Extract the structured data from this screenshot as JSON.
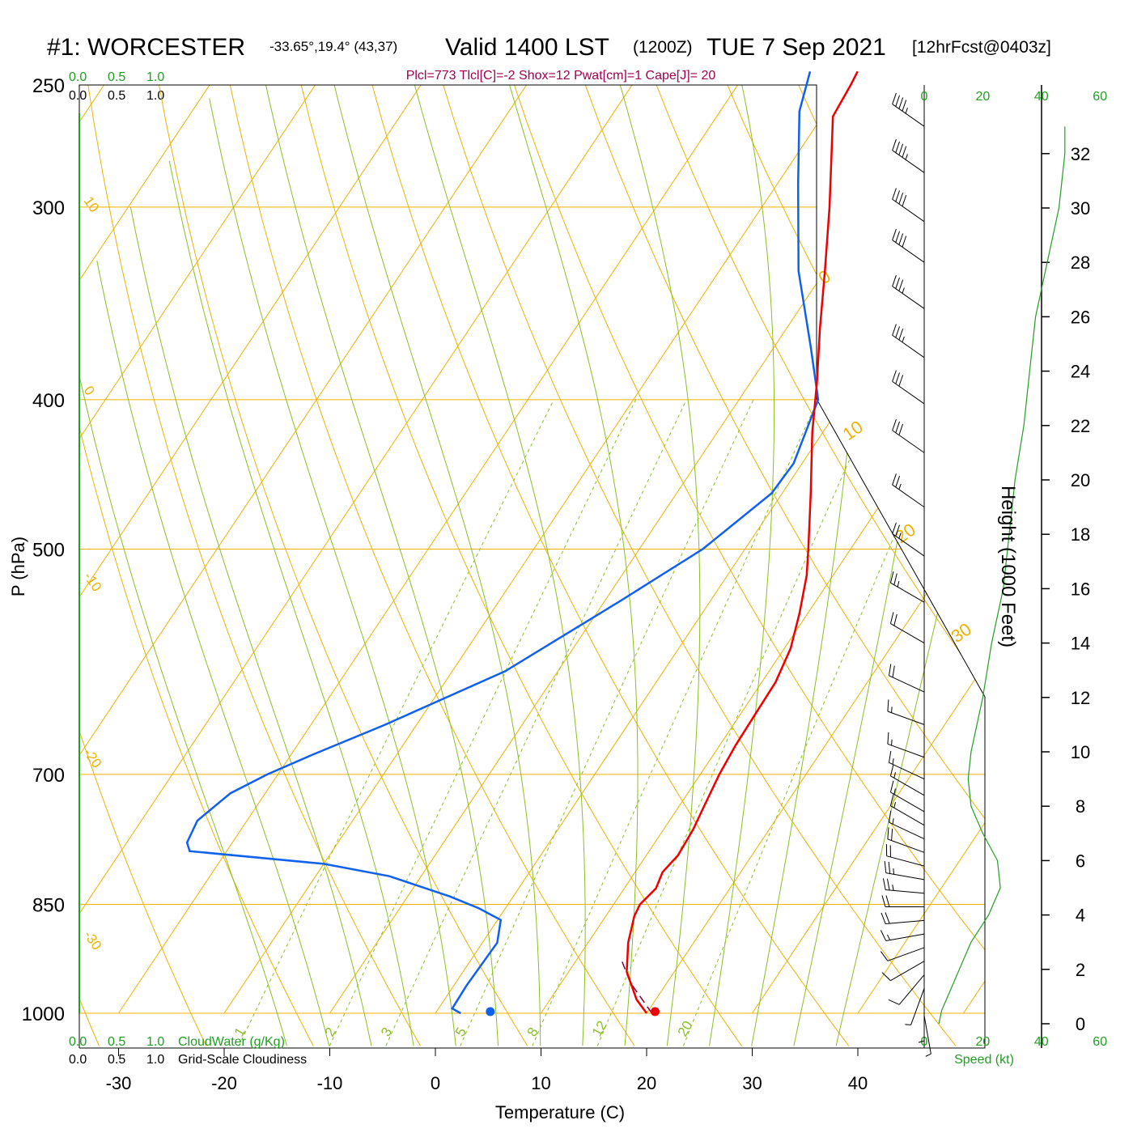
{
  "header": {
    "station": "#1: WORCESTER",
    "coords": "-33.65°,19.4° (43,37)",
    "valid_prefix": "Valid 1400 LST",
    "valid_z": "(1200Z)",
    "valid_date": "TUE 7 Sep 2021",
    "forecast": "[12hrFcst@0403z]",
    "indices": "Plcl=773 Tlcl[C]=-2 Shox=12 Pwat[cm]=1 Cape[J]= 20"
  },
  "cloud_scale": {
    "green_ticks": [
      "0.0",
      "0.5",
      "1.0"
    ],
    "black_ticks": [
      "0.0",
      "0.5",
      "1.0"
    ],
    "cloudwater_label": "CloudWater (g/Kg)",
    "cloudiness_label": "Grid-Scale Cloudiness"
  },
  "colors": {
    "isotherm": "#f0b000",
    "adiabat": "#88c020",
    "temperature": "#ee0000",
    "dewpoint": "#1060ee",
    "parcel": "#800040",
    "green_text": "#20a020",
    "indices_text": "#a00050",
    "wind_barb": "#000000"
  },
  "chart_data": {
    "type": "line",
    "title": "#1: WORCESTER  Valid 1400 LST (1200Z) TUE 7 Sep 2021",
    "xlabel": "Temperature (C)",
    "ylabel": "P (hPa)",
    "y2label": "Height (1000 Feet)",
    "xlim": [
      -34,
      36
    ],
    "ylim": [
      1000,
      250
    ],
    "x_ticks": [
      "-30",
      "-20",
      "-10",
      "0",
      "10",
      "20",
      "30",
      "40"
    ],
    "pressure_ticks": [
      "250",
      "300",
      "400",
      "500",
      "700",
      "850",
      "1000"
    ],
    "height_ticks": [
      "0",
      "2",
      "4",
      "6",
      "8",
      "10",
      "12",
      "14",
      "16",
      "18",
      "20",
      "22",
      "24",
      "26",
      "28",
      "30",
      "32"
    ],
    "isotherm_labels": [
      "10",
      "0",
      "-10",
      "-20",
      "-30",
      "0",
      "10",
      "20",
      "30"
    ],
    "mixing_ratio_labels": [
      "1",
      "2",
      "3",
      "5",
      "8",
      "12",
      "20"
    ],
    "series": [
      {
        "name": "Temperature",
        "points": [
          [
            20,
            1000
          ],
          [
            18.2,
            980
          ],
          [
            15.5,
            940
          ],
          [
            13.8,
            900
          ],
          [
            12.7,
            865
          ],
          [
            12.5,
            850
          ],
          [
            13,
            830
          ],
          [
            12.6,
            810
          ],
          [
            13,
            790
          ],
          [
            12.8,
            760
          ],
          [
            12.3,
            730
          ],
          [
            11.8,
            700
          ],
          [
            11.5,
            670
          ],
          [
            11.4,
            640
          ],
          [
            11.3,
            610
          ],
          [
            10.6,
            580
          ],
          [
            9.2,
            550
          ],
          [
            7.5,
            520
          ],
          [
            6,
            500
          ],
          [
            2.7,
            460
          ],
          [
            -1,
            420
          ],
          [
            -3.7,
            390
          ],
          [
            -6.8,
            360
          ],
          [
            -10,
            330
          ],
          [
            -13.6,
            300
          ],
          [
            -17.8,
            270
          ],
          [
            -19,
            262
          ],
          [
            -19.3,
            250
          ],
          [
            -19.5,
            245
          ]
        ]
      },
      {
        "name": "Dewpoint",
        "points": [
          [
            2.4,
            1000
          ],
          [
            1.3,
            993
          ],
          [
            1.2,
            960
          ],
          [
            1.4,
            900
          ],
          [
            0.3,
            870
          ],
          [
            -2.5,
            855
          ],
          [
            -6,
            840
          ],
          [
            -13,
            815
          ],
          [
            -20,
            800
          ],
          [
            -33.5,
            785
          ],
          [
            -34.3,
            775
          ],
          [
            -34.7,
            750
          ],
          [
            -33.3,
            720
          ],
          [
            -31,
            700
          ],
          [
            -28,
            680
          ],
          [
            -23,
            650
          ],
          [
            -15,
            600
          ],
          [
            -8.5,
            540
          ],
          [
            -4,
            500
          ],
          [
            -1,
            460
          ],
          [
            -0.8,
            440
          ],
          [
            -2.5,
            400
          ],
          [
            -6.5,
            370
          ],
          [
            -12.5,
            330
          ],
          [
            -18,
            290
          ],
          [
            -22.5,
            260
          ],
          [
            -24,
            245
          ]
        ]
      },
      {
        "name": "Parcel",
        "points": [
          [
            20.5,
            1000
          ],
          [
            16.5,
            955
          ],
          [
            14,
            920
          ]
        ]
      }
    ],
    "surface": {
      "temperature": 20.8,
      "dewpoint": 5.2
    },
    "wind": {
      "speed_label": "Speed (kt)",
      "speed_ticks": [
        "0",
        "20",
        "40",
        "60"
      ],
      "speed_profile_kt": [
        [
          0,
          5
        ],
        [
          0.5,
          6
        ],
        [
          1,
          8
        ],
        [
          1.5,
          10
        ],
        [
          2,
          12
        ],
        [
          3,
          16
        ],
        [
          4,
          22
        ],
        [
          5,
          26
        ],
        [
          6,
          25
        ],
        [
          7,
          20
        ],
        [
          8,
          16
        ],
        [
          9,
          15
        ],
        [
          10,
          16
        ],
        [
          12,
          20
        ],
        [
          14,
          23
        ],
        [
          16,
          27
        ],
        [
          18,
          29
        ],
        [
          20,
          31
        ],
        [
          22,
          34
        ],
        [
          24,
          36
        ],
        [
          26,
          38
        ],
        [
          28,
          42
        ],
        [
          30,
          46
        ],
        [
          32,
          48
        ],
        [
          33,
          48
        ]
      ],
      "barbs_height_kft": [
        0.3,
        0.8,
        1.3,
        1.8,
        2.3,
        2.8,
        3.3,
        3.8,
        4.3,
        4.8,
        5.3,
        5.8,
        6.3,
        6.8,
        7.3,
        7.8,
        8.4,
        9.0,
        9.8,
        11.0,
        12.2,
        14.0,
        15.5,
        17.2,
        19.0,
        21.0,
        22.8,
        24.5,
        26.3,
        28.0,
        29.5,
        31.3,
        33.0
      ],
      "barbs_speed_kt": [
        5,
        6,
        8,
        10,
        12,
        14,
        16,
        20,
        24,
        26,
        25,
        22,
        20,
        18,
        16,
        15,
        15,
        15,
        16,
        18,
        20,
        22,
        25,
        27,
        29,
        32,
        34,
        36,
        38,
        40,
        44,
        46,
        48
      ],
      "barbs_dir_deg": [
        170,
        180,
        200,
        220,
        240,
        250,
        260,
        265,
        270,
        275,
        280,
        285,
        290,
        295,
        300,
        300,
        300,
        295,
        290,
        290,
        295,
        300,
        300,
        305,
        305,
        305,
        305,
        305,
        305,
        305,
        305,
        305,
        305
      ]
    }
  }
}
